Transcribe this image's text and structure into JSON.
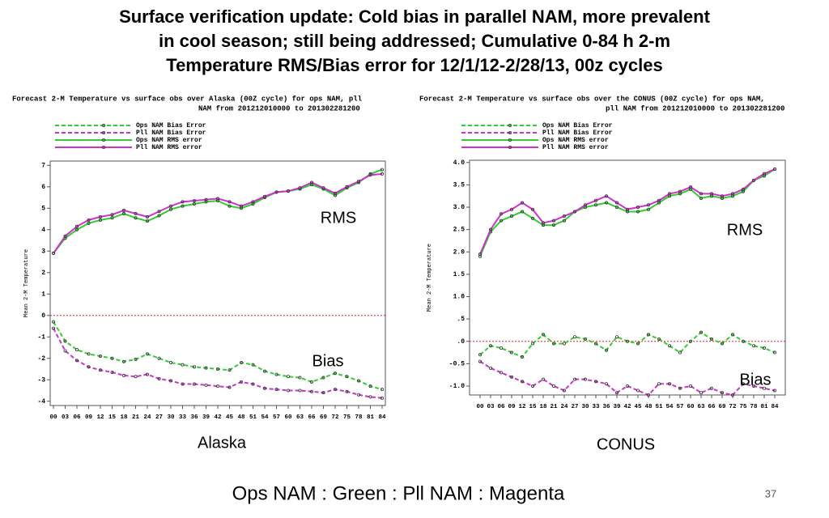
{
  "slide": {
    "title_lines": [
      "Surface verification update: Cold bias in parallel NAM, more prevalent",
      "in cool season; still being addressed; Cumulative 0-84 h 2-m",
      "Temperature RMS/Bias error for 12/1/12-2/28/13, 00z cycles"
    ],
    "footer": "Ops NAM : Green : Pll NAM : Magenta",
    "page_number": "37"
  },
  "chart_data": [
    {
      "type": "line",
      "title_lines": [
        "Forecast 2-M Temperature vs surface obs over Alaska (00Z cycle) for ops NAM, pll",
        "NAM from 201212010000 to 201302281200"
      ],
      "y_label": "Mean 2-M Temperature",
      "caption": "Alaska",
      "annotations": [
        "RMS",
        "Bias"
      ],
      "categories": [
        "00",
        "03",
        "06",
        "09",
        "12",
        "15",
        "18",
        "21",
        "24",
        "27",
        "30",
        "33",
        "36",
        "39",
        "42",
        "45",
        "48",
        "51",
        "54",
        "57",
        "60",
        "63",
        "66",
        "69",
        "72",
        "75",
        "78",
        "81",
        "84"
      ],
      "ylim": [
        -4.2,
        7.2
      ],
      "yticks": [
        -4,
        -3,
        -2,
        -1,
        0,
        1,
        2,
        3,
        4,
        5,
        6,
        7
      ],
      "reference_line": {
        "value": 0,
        "color": "#dd2222"
      },
      "series": [
        {
          "name": "Ops NAM Bias Error",
          "color": "#33cc33",
          "line_style": "dashed",
          "values": [
            -0.3,
            -1.2,
            -1.6,
            -1.8,
            -1.9,
            -2.0,
            -2.15,
            -2.05,
            -1.8,
            -2.0,
            -2.2,
            -2.3,
            -2.4,
            -2.45,
            -2.5,
            -2.55,
            -2.2,
            -2.3,
            -2.6,
            -2.75,
            -2.85,
            -2.9,
            -3.1,
            -2.9,
            -2.7,
            -2.85,
            -3.05,
            -3.3,
            -3.45
          ]
        },
        {
          "name": "Pll NAM Bias Error",
          "color": "#cc33cc",
          "line_style": "dashed",
          "values": [
            -0.6,
            -1.65,
            -2.1,
            -2.4,
            -2.55,
            -2.65,
            -2.8,
            -2.85,
            -2.75,
            -2.95,
            -3.05,
            -3.2,
            -3.2,
            -3.25,
            -3.3,
            -3.35,
            -3.1,
            -3.2,
            -3.4,
            -3.45,
            -3.5,
            -3.5,
            -3.55,
            -3.6,
            -3.45,
            -3.55,
            -3.7,
            -3.8,
            -3.85
          ]
        },
        {
          "name": "Ops NAM RMS error",
          "color": "#33cc33",
          "line_style": "solid",
          "values": [
            2.9,
            3.6,
            4.0,
            4.3,
            4.45,
            4.55,
            4.75,
            4.55,
            4.4,
            4.65,
            4.95,
            5.1,
            5.2,
            5.3,
            5.35,
            5.1,
            5.0,
            5.2,
            5.5,
            5.75,
            5.8,
            5.9,
            6.1,
            5.9,
            5.6,
            5.95,
            6.2,
            6.6,
            6.8
          ]
        },
        {
          "name": "Pll NAM RMS error",
          "color": "#cc33cc",
          "line_style": "solid",
          "values": [
            2.9,
            3.7,
            4.15,
            4.45,
            4.6,
            4.7,
            4.9,
            4.75,
            4.6,
            4.85,
            5.1,
            5.3,
            5.35,
            5.4,
            5.45,
            5.3,
            5.1,
            5.3,
            5.55,
            5.75,
            5.8,
            5.95,
            6.2,
            5.95,
            5.7,
            6.0,
            6.25,
            6.55,
            6.6
          ]
        }
      ]
    },
    {
      "type": "line",
      "title_lines": [
        "Forecast 2-M Temperature vs surface obs over the CONUS (00Z cycle) for ops NAM,",
        "pll NAM from 201212010000 to 201302281200"
      ],
      "y_label": "Mean 2-M Temperature",
      "caption": "CONUS",
      "annotations": [
        "RMS",
        "Bias"
      ],
      "categories": [
        "00",
        "03",
        "06",
        "09",
        "12",
        "15",
        "18",
        "21",
        "24",
        "27",
        "30",
        "33",
        "36",
        "39",
        "42",
        "45",
        "48",
        "51",
        "54",
        "57",
        "60",
        "63",
        "66",
        "69",
        "72",
        "75",
        "78",
        "81",
        "84"
      ],
      "ylim": [
        -1.2,
        4.05
      ],
      "yticks": [
        {
          "value": -1,
          "label": "-1.0"
        },
        {
          "value": -0.5,
          "label": "-0.5"
        },
        {
          "value": 0,
          "label": ".0"
        },
        {
          "value": 0.5,
          "label": ".5"
        },
        {
          "value": 1,
          "label": "1.0"
        },
        {
          "value": 1.5,
          "label": "1.5"
        },
        {
          "value": 2,
          "label": "2.0"
        },
        {
          "value": 2.5,
          "label": "2.5"
        },
        {
          "value": 3,
          "label": "3.0"
        },
        {
          "value": 3.5,
          "label": "3.5"
        },
        {
          "value": 4,
          "label": "4.0"
        }
      ],
      "reference_line": {
        "value": 0,
        "color": "#dd2222"
      },
      "series": [
        {
          "name": "Ops NAM Bias Error",
          "color": "#33cc33",
          "line_style": "dashed",
          "values": [
            -0.3,
            -0.1,
            -0.15,
            -0.25,
            -0.35,
            -0.05,
            0.15,
            -0.05,
            -0.05,
            0.1,
            0.05,
            -0.05,
            -0.2,
            0.1,
            0.0,
            -0.05,
            0.15,
            0.05,
            -0.1,
            -0.25,
            0.0,
            0.2,
            0.05,
            -0.05,
            0.15,
            0.0,
            -0.1,
            -0.15,
            -0.25
          ]
        },
        {
          "name": "Pll NAM Bias Error",
          "color": "#cc33cc",
          "line_style": "dashed",
          "values": [
            -0.45,
            -0.6,
            -0.7,
            -0.8,
            -0.9,
            -1.0,
            -0.85,
            -1.0,
            -1.1,
            -0.85,
            -0.85,
            -0.9,
            -0.95,
            -1.15,
            -1.0,
            -1.1,
            -1.2,
            -0.95,
            -0.95,
            -1.05,
            -1.0,
            -1.15,
            -1.05,
            -1.15,
            -1.2,
            -0.95,
            -1.0,
            -1.05,
            -1.1
          ]
        },
        {
          "name": "Ops NAM RMS error",
          "color": "#33cc33",
          "line_style": "solid",
          "values": [
            1.9,
            2.45,
            2.7,
            2.8,
            2.9,
            2.75,
            2.6,
            2.6,
            2.7,
            2.9,
            3.0,
            3.05,
            3.1,
            3.0,
            2.9,
            2.9,
            2.95,
            3.1,
            3.25,
            3.3,
            3.4,
            3.2,
            3.25,
            3.2,
            3.25,
            3.35,
            3.6,
            3.7,
            3.85
          ]
        },
        {
          "name": "Pll NAM RMS error",
          "color": "#cc33cc",
          "line_style": "solid",
          "values": [
            1.95,
            2.5,
            2.85,
            2.95,
            3.1,
            2.95,
            2.65,
            2.7,
            2.8,
            2.9,
            3.05,
            3.15,
            3.25,
            3.1,
            2.95,
            3.0,
            3.05,
            3.15,
            3.3,
            3.35,
            3.45,
            3.3,
            3.3,
            3.25,
            3.3,
            3.4,
            3.6,
            3.75,
            3.85
          ]
        }
      ]
    }
  ]
}
